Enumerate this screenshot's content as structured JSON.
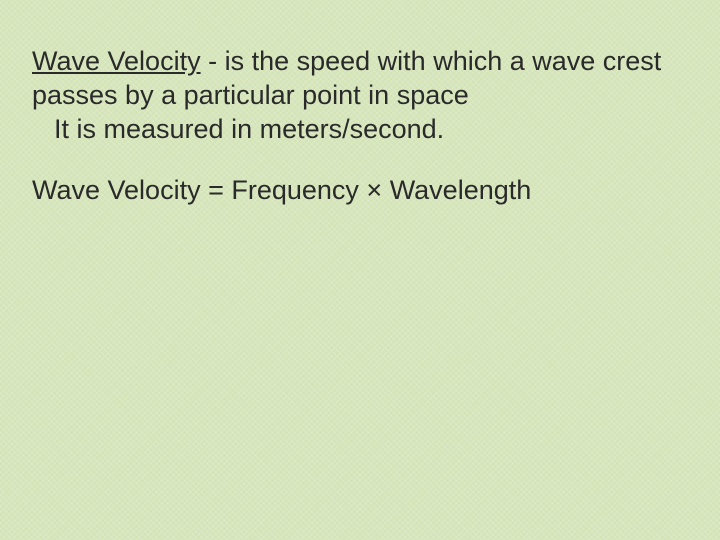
{
  "slide": {
    "term": "Wave Velocity",
    "definition_part1": " - is the speed with which a wave crest passes by a particular point in space",
    "measured_line": "It is measured in meters/second.",
    "formula_pre": "Wave Velocity = Frequency ",
    "formula_symbol": "×",
    "formula_post": " Wavelength"
  },
  "style": {
    "background_color": "#d4e4b8",
    "text_color": "#2a2a2a",
    "font_size_pt": 20,
    "font_family": "Arial"
  }
}
